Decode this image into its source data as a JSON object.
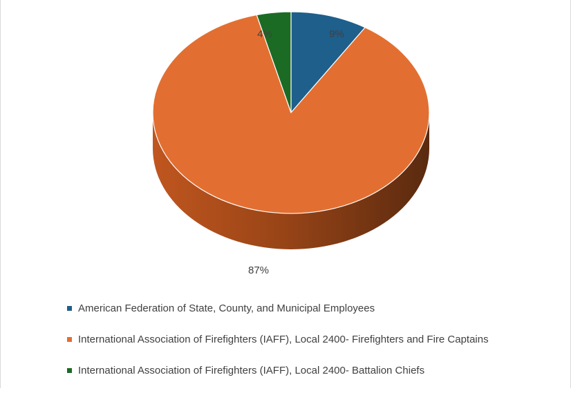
{
  "chart_data": {
    "type": "pie",
    "title": "",
    "three_d": true,
    "legend_position": "bottom",
    "slices": [
      {
        "name": "American Federation of State, County, and Municipal Employees",
        "value": 9,
        "label": "9%",
        "color": "#1f5f8b"
      },
      {
        "name": "International Association of Firefighters (IAFF), Local 2400- Firefighters and Fire Captains",
        "value": 87,
        "label": "87%",
        "color": "#e26f31"
      },
      {
        "name": "International Association of Firefighters (IAFF), Local 2400- Battalion Chiefs",
        "value": 4,
        "label": "4%",
        "color": "#1c6b25"
      }
    ]
  }
}
